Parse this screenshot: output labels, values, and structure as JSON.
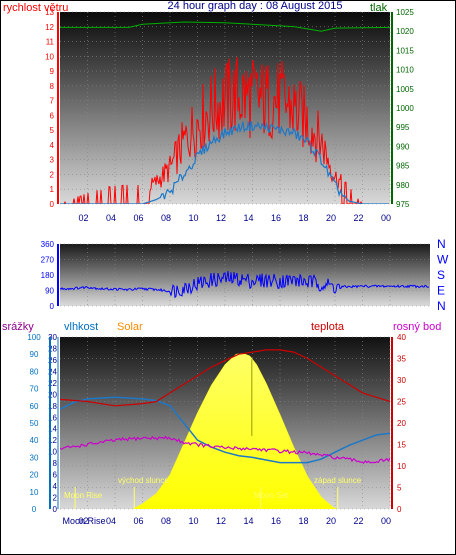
{
  "title": "24 hour graph day : 08 August 2015",
  "colors": {
    "wind": "#ff0000",
    "wind_axis": "#ff0000",
    "pressure": "#006600",
    "direction": "#0000ff",
    "humidity_axis": "#0070c0",
    "rain_axis": "#0070c0",
    "solar_label": "#ff8c00",
    "temp": "#cc0000",
    "dew": "#cc00cc",
    "humidity": "#1e78c8",
    "solar_fill": "#ffff00",
    "tick_text": "#00008b",
    "annot": "#ffff66"
  },
  "chart_data": [
    {
      "type": "line",
      "name": "wind-pressure",
      "left_label": "rychlost větru",
      "right_label": "tlak",
      "ylim": [
        0,
        13
      ],
      "y2lim": [
        975,
        1025
      ],
      "left_ticks": [
        0,
        1,
        2,
        3,
        4,
        5,
        6,
        7,
        8,
        9,
        10,
        11,
        12,
        13
      ],
      "right_ticks": [
        975,
        980,
        985,
        990,
        995,
        1000,
        1005,
        1010,
        1015,
        1020,
        1025
      ],
      "x_ticks": [
        "02",
        "04",
        "06",
        "08",
        "10",
        "12",
        "14",
        "16",
        "18",
        "20",
        "22",
        "00"
      ],
      "grid": true,
      "wind_avg": [
        [
          0,
          0
        ],
        [
          3,
          0
        ],
        [
          6,
          0
        ],
        [
          7,
          0.3
        ],
        [
          8,
          0.8
        ],
        [
          9,
          2
        ],
        [
          10,
          3.2
        ],
        [
          11,
          4.2
        ],
        [
          12,
          4.8
        ],
        [
          13,
          5.2
        ],
        [
          14,
          5.3
        ],
        [
          15,
          5.2
        ],
        [
          16,
          5
        ],
        [
          17,
          4.8
        ],
        [
          18,
          4.2
        ],
        [
          19,
          3
        ],
        [
          20,
          1.2
        ],
        [
          21,
          0.2
        ],
        [
          22,
          0
        ],
        [
          24,
          0
        ]
      ],
      "wind_gust": [
        [
          0,
          0
        ],
        [
          2,
          0.6
        ],
        [
          4,
          1
        ],
        [
          6,
          1
        ],
        [
          7,
          1.6
        ],
        [
          8,
          2.6
        ],
        [
          9,
          4.5
        ],
        [
          10,
          6
        ],
        [
          11,
          7
        ],
        [
          12,
          7.6
        ],
        [
          13,
          8
        ],
        [
          14,
          7.8
        ],
        [
          15,
          7.6
        ],
        [
          16,
          7.6
        ],
        [
          17,
          7
        ],
        [
          18,
          6
        ],
        [
          19,
          4.6
        ],
        [
          20,
          2
        ],
        [
          21,
          1
        ],
        [
          22,
          0
        ],
        [
          24,
          0
        ]
      ],
      "pressure": [
        [
          0,
          1021
        ],
        [
          3,
          1021
        ],
        [
          5,
          1021
        ],
        [
          6,
          1021.8
        ],
        [
          9,
          1022.4
        ],
        [
          12,
          1022.2
        ],
        [
          14,
          1021.8
        ],
        [
          17,
          1021.2
        ],
        [
          19,
          1020
        ],
        [
          20,
          1020.8
        ],
        [
          24,
          1021
        ]
      ]
    },
    {
      "type": "scatter",
      "name": "wind-direction",
      "ylim": [
        0,
        360
      ],
      "left_ticks": [
        0,
        90,
        180,
        270,
        360
      ],
      "compass": [
        "N",
        "W",
        "S",
        "E",
        "N"
      ],
      "grid": true,
      "direction": [
        [
          0,
          100
        ],
        [
          1,
          102
        ],
        [
          2,
          110
        ],
        [
          3,
          100
        ],
        [
          4,
          98
        ],
        [
          5,
          95
        ],
        [
          6,
          100
        ],
        [
          7,
          96
        ],
        [
          8,
          85
        ],
        [
          9,
          105
        ],
        [
          10,
          130
        ],
        [
          11,
          150
        ],
        [
          12,
          160
        ],
        [
          13,
          158
        ],
        [
          14,
          145
        ],
        [
          15,
          150
        ],
        [
          16,
          145
        ],
        [
          17,
          150
        ],
        [
          18,
          140
        ],
        [
          19,
          130
        ],
        [
          20,
          110
        ],
        [
          21,
          112
        ],
        [
          22,
          115
        ],
        [
          24,
          115
        ]
      ]
    },
    {
      "type": "line",
      "name": "temp-humidity",
      "labels": {
        "rain": "srážky",
        "humidity": "vlhkost",
        "solar": "Solar",
        "temp": "teplota",
        "dew": "rosný bod"
      },
      "rain_ticks": [
        0,
        10,
        20,
        30,
        40,
        50,
        60,
        70,
        80,
        90,
        100
      ],
      "hum_ticks": [
        0,
        2,
        4,
        6,
        8,
        10,
        12,
        14,
        16,
        18,
        20,
        22,
        24,
        26,
        28,
        30
      ],
      "temp_ticks": [
        0,
        5,
        10,
        15,
        20,
        25,
        30,
        35,
        40
      ],
      "x_ticks": [
        "Moon Rise",
        "02",
        "04",
        "06",
        "08",
        "10",
        "12",
        "14",
        "16",
        "18",
        "20",
        "22",
        "00"
      ],
      "annotations": [
        "východ slunce",
        "Moon Rise",
        "Moon Set",
        "západ slunce"
      ],
      "ylim_temp": [
        0,
        40
      ],
      "temperature": [
        [
          0,
          25.5
        ],
        [
          2,
          25
        ],
        [
          4,
          24
        ],
        [
          6,
          24.5
        ],
        [
          7,
          25
        ],
        [
          8,
          27
        ],
        [
          9,
          29
        ],
        [
          10,
          31
        ],
        [
          11,
          33
        ],
        [
          12,
          34.5
        ],
        [
          13,
          36
        ],
        [
          14,
          36.5
        ],
        [
          15,
          37
        ],
        [
          16,
          37
        ],
        [
          17,
          36.5
        ],
        [
          18,
          35
        ],
        [
          19,
          33
        ],
        [
          20,
          31
        ],
        [
          21,
          29
        ],
        [
          22,
          27
        ],
        [
          23,
          26
        ],
        [
          24,
          25
        ]
      ],
      "dew_point": [
        [
          0,
          14
        ],
        [
          2,
          15
        ],
        [
          4,
          16
        ],
        [
          6,
          16.5
        ],
        [
          8,
          16.5
        ],
        [
          9,
          15.5
        ],
        [
          10,
          15
        ],
        [
          11,
          14.5
        ],
        [
          12,
          14.2
        ],
        [
          14,
          14
        ],
        [
          16,
          13.5
        ],
        [
          18,
          13
        ],
        [
          20,
          12
        ],
        [
          21,
          11.5
        ],
        [
          22,
          11
        ],
        [
          23,
          11
        ],
        [
          24,
          11.5
        ]
      ],
      "humidity": [
        [
          0,
          58
        ],
        [
          1,
          62
        ],
        [
          2,
          64
        ],
        [
          4,
          65
        ],
        [
          6,
          64
        ],
        [
          7,
          63
        ],
        [
          8,
          60
        ],
        [
          9,
          50
        ],
        [
          10,
          40
        ],
        [
          11,
          36
        ],
        [
          12,
          33
        ],
        [
          13,
          31
        ],
        [
          14,
          30
        ],
        [
          16,
          27
        ],
        [
          18,
          27
        ],
        [
          19,
          29
        ],
        [
          20,
          33
        ],
        [
          21,
          37
        ],
        [
          22,
          40
        ],
        [
          23,
          43
        ],
        [
          24,
          44
        ]
      ],
      "solar": [
        [
          5.3,
          0
        ],
        [
          6,
          30
        ],
        [
          7,
          90
        ],
        [
          8,
          200
        ],
        [
          9,
          380
        ],
        [
          10,
          560
        ],
        [
          11,
          720
        ],
        [
          12,
          840
        ],
        [
          12.8,
          900
        ],
        [
          13.3,
          905
        ],
        [
          13.8,
          890
        ],
        [
          14.3,
          840
        ],
        [
          15,
          730
        ],
        [
          16,
          550
        ],
        [
          17,
          360
        ],
        [
          18,
          190
        ],
        [
          19,
          70
        ],
        [
          19.9,
          8
        ],
        [
          20.1,
          0
        ]
      ],
      "solar_max": 1000,
      "events": {
        "sunrise": 5.4,
        "moonrise": 1.1,
        "moonset": 14.6,
        "sunset": 20.2
      }
    }
  ]
}
